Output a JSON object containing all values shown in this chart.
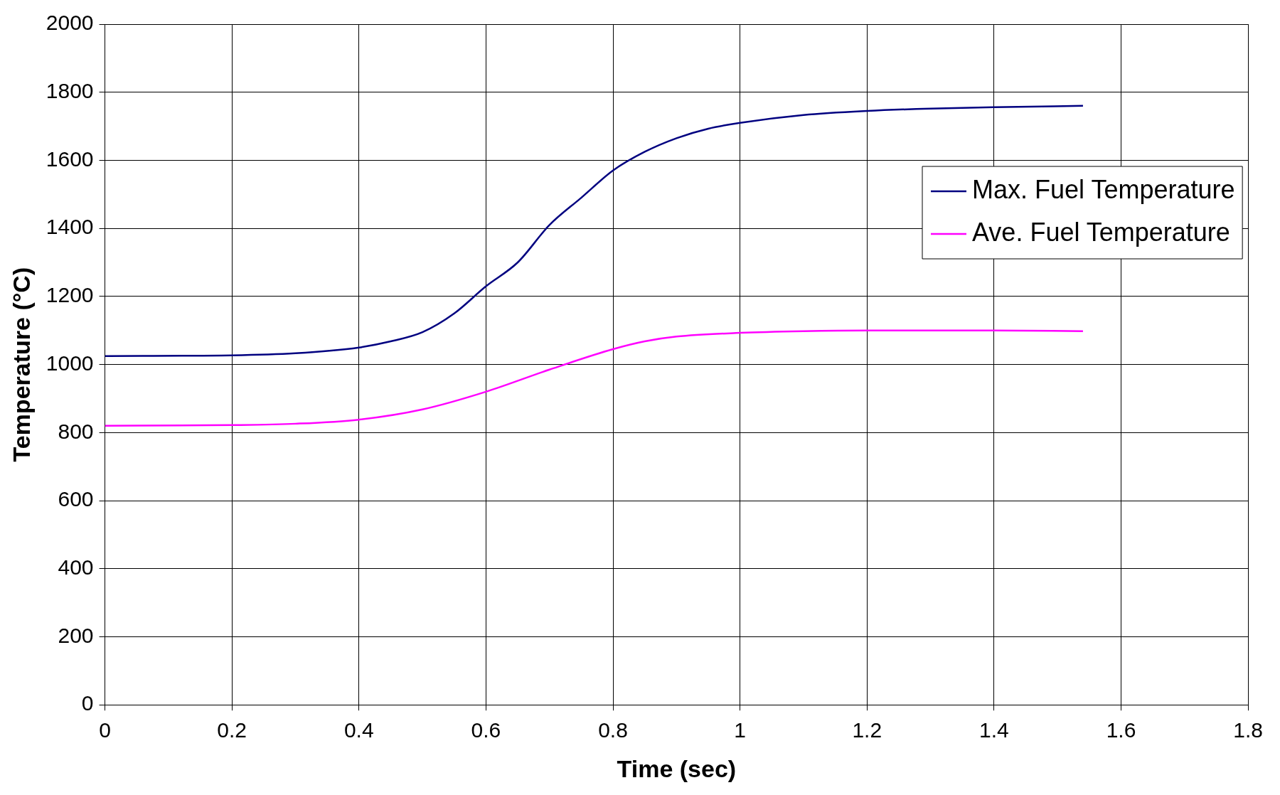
{
  "chart_data": {
    "type": "line",
    "xlabel": "Time (sec)",
    "ylabel": "Temperature (°C)",
    "xlim": [
      0,
      1.8
    ],
    "xticks": [
      0,
      0.2,
      0.4,
      0.6,
      0.8,
      1,
      1.2,
      1.4,
      1.6,
      1.8
    ],
    "ylim": [
      0,
      2000
    ],
    "yticks": [
      0,
      200,
      400,
      600,
      800,
      1000,
      1200,
      1400,
      1600,
      1800,
      2000
    ],
    "grid": true,
    "legend": "top right",
    "marker": "none",
    "line_style": "solid",
    "series": [
      {
        "name": "Max. Fuel Temperature",
        "color": "#000080",
        "x": [
          0,
          0.2,
          0.3,
          0.4,
          0.45,
          0.5,
          0.55,
          0.6,
          0.65,
          0.7,
          0.75,
          0.8,
          0.85,
          0.9,
          0.95,
          1,
          1.1,
          1.2,
          1.3,
          1.4,
          1.54
        ],
        "values": [
          1025,
          1027,
          1033,
          1050,
          1068,
          1095,
          1150,
          1230,
          1300,
          1410,
          1490,
          1570,
          1625,
          1665,
          1693,
          1710,
          1733,
          1745,
          1752,
          1756,
          1760
        ]
      },
      {
        "name": "Ave. Fuel Temperature",
        "color": "#ff00ff",
        "x": [
          0,
          0.2,
          0.3,
          0.4,
          0.5,
          0.6,
          0.7,
          0.8,
          0.85,
          0.9,
          1,
          1.1,
          1.2,
          1.3,
          1.4,
          1.54
        ],
        "values": [
          820,
          822,
          826,
          838,
          868,
          920,
          985,
          1045,
          1068,
          1082,
          1093,
          1098,
          1100,
          1100,
          1100,
          1098
        ]
      }
    ]
  }
}
